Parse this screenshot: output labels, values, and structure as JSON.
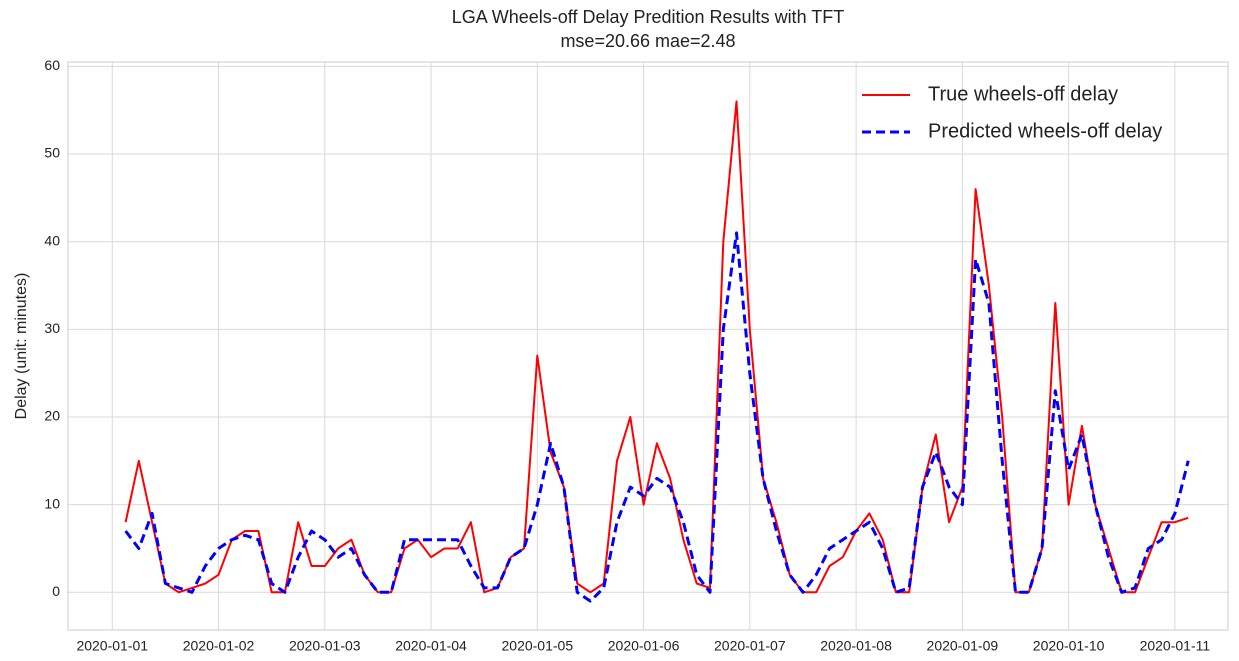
{
  "chart_data": {
    "type": "line",
    "title": "LGA Wheels-off Delay Predition Results with TFT",
    "subtitle": "mse=20.66 mae=2.48",
    "ylabel": "Delay (unit: minutes)",
    "x": [
      "2020-01-01 03:00",
      "2020-01-01 06:00",
      "2020-01-01 09:00",
      "2020-01-01 12:00",
      "2020-01-01 15:00",
      "2020-01-01 18:00",
      "2020-01-01 21:00",
      "2020-01-02 00:00",
      "2020-01-02 03:00",
      "2020-01-02 06:00",
      "2020-01-02 09:00",
      "2020-01-02 12:00",
      "2020-01-02 15:00",
      "2020-01-02 18:00",
      "2020-01-02 21:00",
      "2020-01-03 00:00",
      "2020-01-03 03:00",
      "2020-01-03 06:00",
      "2020-01-03 09:00",
      "2020-01-03 12:00",
      "2020-01-03 15:00",
      "2020-01-03 18:00",
      "2020-01-03 21:00",
      "2020-01-04 00:00",
      "2020-01-04 03:00",
      "2020-01-04 06:00",
      "2020-01-04 09:00",
      "2020-01-04 12:00",
      "2020-01-04 15:00",
      "2020-01-04 18:00",
      "2020-01-04 21:00",
      "2020-01-05 00:00",
      "2020-01-05 03:00",
      "2020-01-05 06:00",
      "2020-01-05 09:00",
      "2020-01-05 12:00",
      "2020-01-05 15:00",
      "2020-01-05 18:00",
      "2020-01-05 21:00",
      "2020-01-06 00:00",
      "2020-01-06 03:00",
      "2020-01-06 06:00",
      "2020-01-06 09:00",
      "2020-01-06 12:00",
      "2020-01-06 15:00",
      "2020-01-06 18:00",
      "2020-01-06 21:00",
      "2020-01-07 00:00",
      "2020-01-07 03:00",
      "2020-01-07 06:00",
      "2020-01-07 09:00",
      "2020-01-07 12:00",
      "2020-01-07 15:00",
      "2020-01-07 18:00",
      "2020-01-07 21:00",
      "2020-01-08 00:00",
      "2020-01-08 03:00",
      "2020-01-08 06:00",
      "2020-01-08 09:00",
      "2020-01-08 12:00",
      "2020-01-08 15:00",
      "2020-01-08 18:00",
      "2020-01-08 21:00",
      "2020-01-09 00:00",
      "2020-01-09 03:00",
      "2020-01-09 06:00",
      "2020-01-09 09:00",
      "2020-01-09 12:00",
      "2020-01-09 15:00",
      "2020-01-09 18:00",
      "2020-01-09 21:00",
      "2020-01-10 00:00",
      "2020-01-10 03:00",
      "2020-01-10 06:00",
      "2020-01-10 09:00",
      "2020-01-10 12:00",
      "2020-01-10 15:00",
      "2020-01-10 18:00",
      "2020-01-10 21:00",
      "2020-01-11 00:00",
      "2020-01-11 03:00"
    ],
    "series": [
      {
        "name": "True wheels-off delay",
        "color": "#ff0000",
        "style": "solid",
        "values": [
          8,
          15,
          8,
          1,
          0,
          0.5,
          1,
          2,
          6,
          7,
          7,
          0,
          0,
          8,
          3,
          3,
          5,
          6,
          2,
          0,
          0,
          5,
          6,
          4,
          5,
          5,
          8,
          0,
          0.5,
          4,
          5,
          27,
          16,
          12,
          1,
          0,
          1,
          15,
          20,
          10,
          17,
          13,
          6,
          1,
          0.5,
          40,
          56,
          30,
          13,
          8,
          2,
          0,
          0,
          3,
          4,
          7,
          9,
          6,
          0,
          0,
          12,
          18,
          8,
          12,
          46,
          35,
          20,
          0,
          0,
          5,
          33,
          10,
          19,
          10,
          5,
          0,
          0,
          4,
          8,
          8,
          8.5
        ]
      },
      {
        "name": "Predicted wheels-off delay",
        "color": "#0000ff",
        "style": "dashed",
        "values": [
          7,
          5,
          9,
          1,
          0.5,
          0,
          3,
          5,
          6,
          6.5,
          6,
          1,
          0,
          4,
          7,
          6,
          4,
          5,
          2,
          0,
          0,
          6,
          6,
          6,
          6,
          6,
          3,
          0.5,
          0.5,
          4,
          5,
          10,
          17,
          12,
          0,
          -1,
          0.5,
          8,
          12,
          11,
          13,
          12,
          8,
          2,
          0,
          30,
          41,
          25,
          13,
          7,
          2,
          0,
          2,
          5,
          6,
          7,
          8,
          5,
          0,
          0.5,
          12,
          16,
          12,
          10,
          38,
          33,
          15,
          0,
          0,
          5,
          23,
          14,
          18,
          10,
          4,
          0,
          0.5,
          5,
          6,
          9,
          15
        ]
      }
    ],
    "xlim": [
      "2019-12-31 14:00",
      "2020-01-11 12:00"
    ],
    "xticks": [
      "2020-01-01",
      "2020-01-02",
      "2020-01-03",
      "2020-01-04",
      "2020-01-05",
      "2020-01-06",
      "2020-01-07",
      "2020-01-08",
      "2020-01-09",
      "2020-01-10",
      "2020-01-11"
    ],
    "ylim": [
      -4.3,
      60.5
    ],
    "yticks": [
      0,
      10,
      20,
      30,
      40,
      50,
      60
    ],
    "grid": true,
    "legend": "upper right"
  }
}
